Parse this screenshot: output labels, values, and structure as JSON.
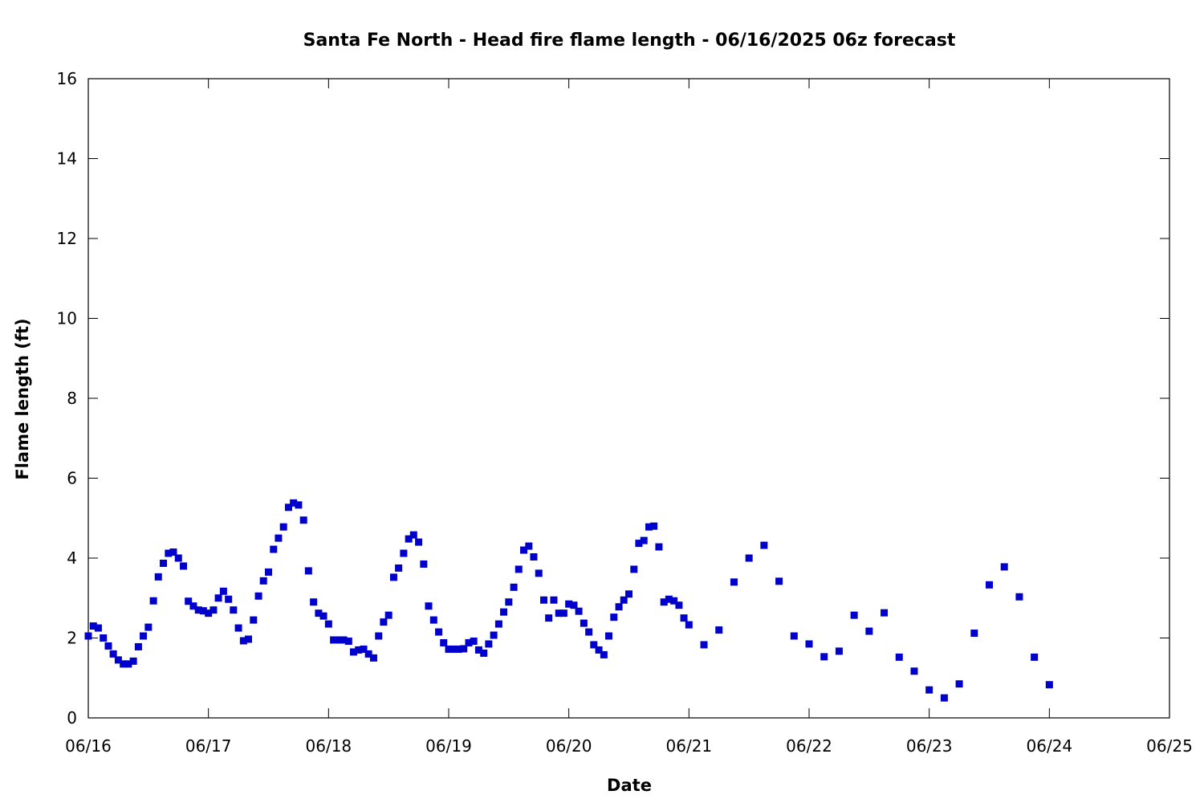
{
  "chart_data": {
    "type": "scatter",
    "title": "Santa Fe North - Head fire flame length - 06/16/2025 06z forecast",
    "xlabel": "Date",
    "ylabel": "Flame length (ft)",
    "xlim": [
      0,
      9
    ],
    "ylim": [
      0,
      16
    ],
    "x_tick_labels": [
      "06/16",
      "06/17",
      "06/18",
      "06/19",
      "06/20",
      "06/21",
      "06/22",
      "06/23",
      "06/24",
      "06/25"
    ],
    "y_tick_labels": [
      "0",
      "2",
      "4",
      "6",
      "8",
      "10",
      "12",
      "14",
      "16"
    ],
    "grid": false,
    "legend": "none",
    "marker_color": "#0000cc",
    "x_units": "days since 06/16",
    "series": [
      {
        "x": [
          0.0,
          0.042,
          0.083,
          0.125,
          0.167,
          0.208,
          0.25,
          0.292,
          0.333,
          0.375,
          0.417,
          0.458,
          0.5,
          0.542,
          0.583,
          0.625,
          0.667,
          0.708,
          0.75,
          0.792,
          0.833,
          0.875,
          0.917,
          0.958,
          1.0,
          1.042,
          1.083,
          1.125,
          1.167,
          1.208,
          1.25,
          1.292,
          1.333,
          1.375,
          1.417,
          1.458,
          1.5,
          1.542,
          1.583,
          1.625,
          1.667,
          1.708,
          1.75,
          1.792,
          1.833,
          1.875,
          1.917,
          1.958,
          2.0,
          2.042,
          2.083,
          2.125,
          2.167,
          2.208,
          2.25,
          2.292,
          2.333,
          2.375,
          2.417,
          2.458,
          2.5,
          2.542,
          2.583,
          2.625,
          2.667,
          2.708,
          2.75,
          2.792,
          2.833,
          2.875,
          2.917,
          2.958,
          3.0,
          3.042,
          3.083,
          3.125,
          3.167,
          3.208,
          3.25,
          3.292,
          3.333,
          3.375,
          3.417,
          3.458,
          3.5,
          3.542,
          3.583,
          3.625,
          3.667,
          3.708,
          3.75,
          3.792,
          3.833,
          3.875,
          3.917,
          3.958,
          4.0,
          4.042,
          4.083,
          4.125,
          4.167,
          4.208,
          4.25,
          4.292,
          4.333,
          4.375,
          4.417,
          4.458,
          4.5,
          4.542,
          4.583,
          4.625,
          4.667,
          4.708,
          4.75,
          4.792,
          4.833,
          4.875,
          4.917,
          4.958,
          5.0,
          5.125,
          5.25,
          5.375,
          5.5,
          5.625,
          5.75,
          5.875,
          6.0,
          6.125,
          6.25,
          6.375,
          6.5,
          6.625,
          6.75,
          6.875,
          7.0,
          7.125,
          7.25,
          7.375,
          7.5,
          7.625,
          7.75,
          7.875,
          8.0
        ],
        "y": [
          2.05,
          2.3,
          2.25,
          2.0,
          1.8,
          1.6,
          1.45,
          1.35,
          1.35,
          1.42,
          1.78,
          2.05,
          2.27,
          2.93,
          3.53,
          3.87,
          4.12,
          4.15,
          4.0,
          3.8,
          2.92,
          2.8,
          2.7,
          2.68,
          2.62,
          2.7,
          3.0,
          3.17,
          2.97,
          2.7,
          2.25,
          1.93,
          1.97,
          2.45,
          3.05,
          3.43,
          3.65,
          4.22,
          4.5,
          4.78,
          5.27,
          5.38,
          5.33,
          4.95,
          3.68,
          2.9,
          2.62,
          2.55,
          2.35,
          1.95,
          1.95,
          1.95,
          1.92,
          1.65,
          1.7,
          1.72,
          1.6,
          1.5,
          2.05,
          2.4,
          2.57,
          3.52,
          3.75,
          4.12,
          4.48,
          4.58,
          4.4,
          3.85,
          2.8,
          2.45,
          2.15,
          1.88,
          1.72,
          1.72,
          1.72,
          1.73,
          1.88,
          1.92,
          1.7,
          1.62,
          1.85,
          2.07,
          2.35,
          2.65,
          2.9,
          3.27,
          3.72,
          4.2,
          4.3,
          4.03,
          3.62,
          2.95,
          2.5,
          2.95,
          2.62,
          2.62,
          2.85,
          2.82,
          2.67,
          2.37,
          2.15,
          1.83,
          1.7,
          1.58,
          2.05,
          2.52,
          2.78,
          2.95,
          3.1,
          3.72,
          4.37,
          4.44,
          4.78,
          4.8,
          4.28,
          2.9,
          2.97,
          2.93,
          2.82,
          2.5,
          2.33,
          1.83,
          2.2,
          3.4,
          4.0,
          4.32,
          3.42,
          2.05,
          1.85,
          1.53,
          1.67,
          2.57,
          2.17,
          2.63,
          1.52,
          1.17,
          0.7,
          0.5,
          0.85,
          2.12,
          3.33,
          3.78,
          3.03,
          1.52,
          0.83
        ]
      }
    ]
  }
}
